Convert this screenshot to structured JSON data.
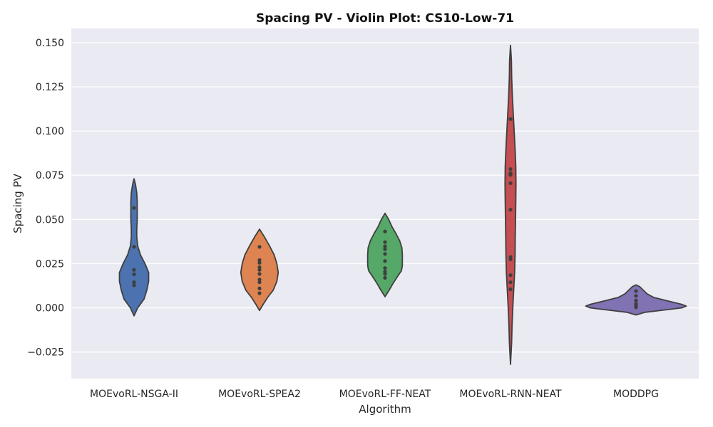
{
  "chart_data": {
    "type": "violin",
    "title": "Spacing PV - Violin Plot: CS10-Low-71",
    "xlabel": "Algorithm",
    "ylabel": "Spacing PV",
    "ylim": [
      -0.04,
      0.158
    ],
    "yticks": [
      -0.025,
      0.0,
      0.025,
      0.05,
      0.075,
      0.1,
      0.125,
      0.15
    ],
    "ytick_labels": [
      "−0.025",
      "0.000",
      "0.025",
      "0.050",
      "0.075",
      "0.100",
      "0.125",
      "0.150"
    ],
    "grid": true,
    "background_color": "#eaeaf2",
    "categories": [
      "MOEvoRL-NSGA-II",
      "MOEvoRL-SPEA2",
      "MOEvoRL-FF-NEAT",
      "MOEvoRL-RNN-NEAT",
      "MODDPG"
    ],
    "series": [
      {
        "color": "#4c72b0",
        "points": [
          0.0565,
          0.0345,
          0.0215,
          0.019,
          0.0145,
          0.0128
        ],
        "profile": [
          [
            -0.0045,
            0
          ],
          [
            0,
            0.004
          ],
          [
            0.005,
            0.011
          ],
          [
            0.01,
            0.014
          ],
          [
            0.015,
            0.016
          ],
          [
            0.02,
            0.016
          ],
          [
            0.025,
            0.012
          ],
          [
            0.03,
            0.007
          ],
          [
            0.035,
            0.004
          ],
          [
            0.04,
            0.003
          ],
          [
            0.045,
            0.003
          ],
          [
            0.05,
            0.0035
          ],
          [
            0.055,
            0.0035
          ],
          [
            0.06,
            0.0035
          ],
          [
            0.065,
            0.003
          ],
          [
            0.07,
            0.0015
          ],
          [
            0.073,
            0
          ]
        ]
      },
      {
        "color": "#dd8452",
        "points": [
          0.0345,
          0.027,
          0.0255,
          0.023,
          0.0215,
          0.0192,
          0.016,
          0.0145,
          0.011,
          0.0083
        ],
        "profile": [
          [
            -0.0015,
            0
          ],
          [
            0.002,
            0.004
          ],
          [
            0.006,
            0.009
          ],
          [
            0.01,
            0.015
          ],
          [
            0.015,
            0.019
          ],
          [
            0.02,
            0.0205
          ],
          [
            0.025,
            0.019
          ],
          [
            0.03,
            0.016
          ],
          [
            0.035,
            0.011
          ],
          [
            0.04,
            0.0055
          ],
          [
            0.0445,
            0
          ]
        ]
      },
      {
        "color": "#55a868",
        "points": [
          0.0432,
          0.0372,
          0.0348,
          0.0332,
          0.0305,
          0.0265,
          0.0225,
          0.0205,
          0.0192,
          0.017
        ],
        "profile": [
          [
            0.0063,
            0
          ],
          [
            0.01,
            0.0045
          ],
          [
            0.014,
            0.009
          ],
          [
            0.018,
            0.014
          ],
          [
            0.021,
            0.018
          ],
          [
            0.024,
            0.019
          ],
          [
            0.027,
            0.019
          ],
          [
            0.03,
            0.019
          ],
          [
            0.034,
            0.0185
          ],
          [
            0.038,
            0.016
          ],
          [
            0.042,
            0.012
          ],
          [
            0.046,
            0.0075
          ],
          [
            0.05,
            0.004
          ],
          [
            0.0535,
            0
          ]
        ]
      },
      {
        "color": "#c44e52",
        "points": [
          0.1068,
          0.0785,
          0.0762,
          0.0752,
          0.0705,
          0.0555,
          0.0288,
          0.0275,
          0.0185,
          0.0145,
          0.0105
        ],
        "profile": [
          [
            -0.032,
            0
          ],
          [
            -0.02,
            0.0012
          ],
          [
            -0.01,
            0.0017
          ],
          [
            0,
            0.0025
          ],
          [
            0.01,
            0.0035
          ],
          [
            0.02,
            0.0045
          ],
          [
            0.03,
            0.005
          ],
          [
            0.04,
            0.0052
          ],
          [
            0.05,
            0.0055
          ],
          [
            0.06,
            0.0058
          ],
          [
            0.07,
            0.006
          ],
          [
            0.08,
            0.0058
          ],
          [
            0.09,
            0.005
          ],
          [
            0.1,
            0.004
          ],
          [
            0.11,
            0.003
          ],
          [
            0.12,
            0.002
          ],
          [
            0.13,
            0.0013
          ],
          [
            0.14,
            0.001
          ],
          [
            0.1485,
            0
          ]
        ]
      },
      {
        "color": "#8172b3",
        "points": [
          0.0095,
          0.0068,
          0.0042,
          0.0023,
          0.0012,
          0.0003
        ],
        "profile": [
          [
            -0.004,
            0
          ],
          [
            -0.0025,
            0.01
          ],
          [
            -0.001,
            0.034
          ],
          [
            0,
            0.05
          ],
          [
            0.001,
            0.055
          ],
          [
            0.002,
            0.05
          ],
          [
            0.004,
            0.034
          ],
          [
            0.006,
            0.019
          ],
          [
            0.008,
            0.012
          ],
          [
            0.01,
            0.008
          ],
          [
            0.012,
            0.004
          ],
          [
            0.013,
            0
          ]
        ]
      }
    ]
  }
}
